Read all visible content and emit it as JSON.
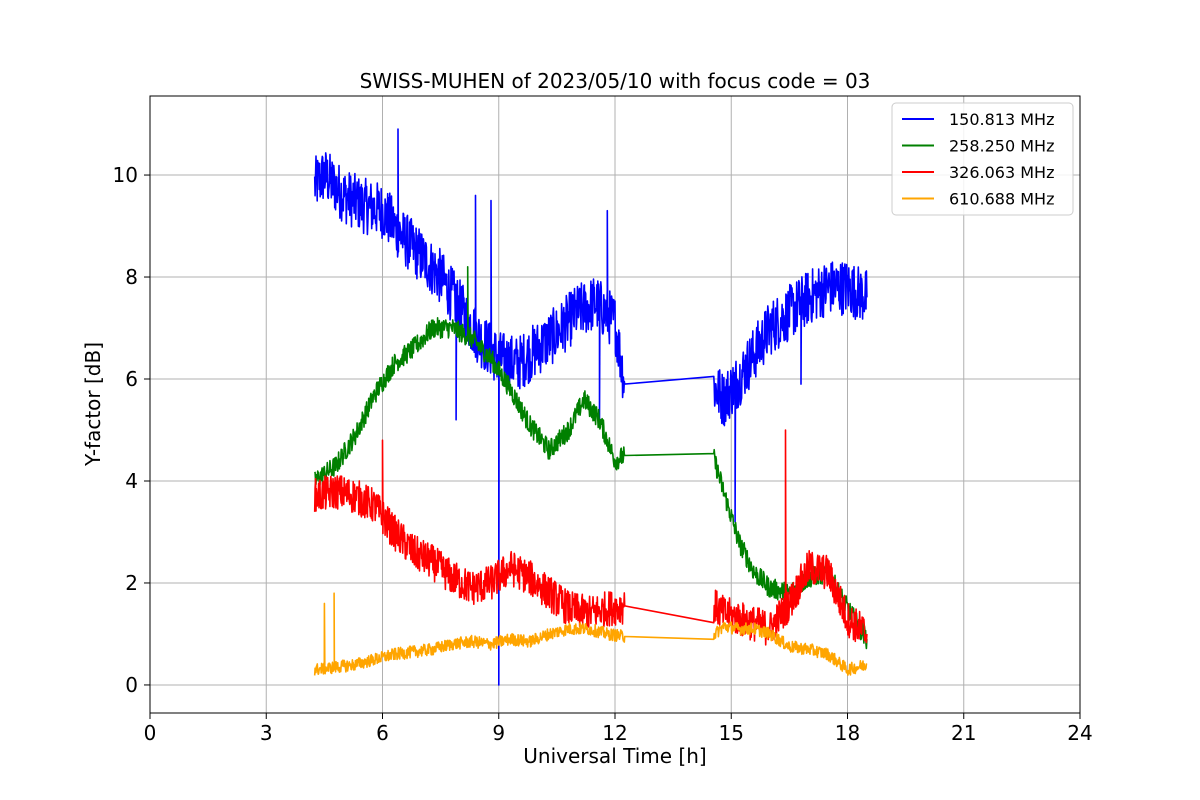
{
  "chart_data": {
    "type": "line",
    "title": "SWISS-MUHEN of 2023/05/10 with focus code = 03",
    "xlabel": "Universal Time [h]",
    "ylabel": "Y-factor [dB]",
    "xlim": [
      0,
      24
    ],
    "ylim": [
      -0.55,
      11.55
    ],
    "xticks": [
      0,
      3,
      6,
      9,
      12,
      15,
      18,
      21,
      24
    ],
    "yticks": [
      0,
      2,
      4,
      6,
      8,
      10
    ],
    "xtick_labels": [
      "0",
      "3",
      "6",
      "9",
      "12",
      "15",
      "18",
      "21",
      "24"
    ],
    "ytick_labels": [
      "0",
      "2",
      "4",
      "6",
      "8",
      "10"
    ],
    "grid": true,
    "legend_position": "top-right",
    "series": [
      {
        "name": "150.813 MHz",
        "color": "#0000ff",
        "noise": 0.55,
        "spikes": [
          [
            6.4,
            10.9
          ],
          [
            7.9,
            5.2
          ],
          [
            8.4,
            9.6
          ],
          [
            8.8,
            9.5
          ],
          [
            9.0,
            0.0
          ],
          [
            11.6,
            5.2
          ],
          [
            11.8,
            9.3
          ],
          [
            15.1,
            3.2
          ],
          [
            16.8,
            5.9
          ]
        ],
        "x": [
          4.25,
          4.5,
          5.0,
          5.5,
          6.0,
          6.5,
          7.0,
          7.5,
          8.0,
          8.5,
          9.0,
          9.5,
          10.0,
          10.5,
          11.0,
          11.5,
          12.0,
          12.25,
          14.55,
          14.8,
          15.2,
          15.6,
          16.0,
          16.5,
          17.0,
          17.5,
          18.0,
          18.5
        ],
        "y": [
          9.8,
          10.0,
          9.6,
          9.4,
          9.3,
          8.8,
          8.4,
          8.0,
          7.4,
          6.8,
          6.4,
          6.3,
          6.6,
          6.9,
          7.3,
          7.5,
          7.1,
          5.9,
          5.85,
          5.6,
          6.0,
          6.5,
          7.0,
          7.3,
          7.6,
          7.8,
          7.8,
          7.6
        ]
      },
      {
        "name": "258.250 MHz",
        "color": "#008000",
        "noise": 0.2,
        "spikes": [
          [
            8.2,
            8.2
          ]
        ],
        "x": [
          4.25,
          4.8,
          5.3,
          5.8,
          6.3,
          6.8,
          7.3,
          7.8,
          8.3,
          8.8,
          9.3,
          9.8,
          10.3,
          10.8,
          11.2,
          11.6,
          12.0,
          12.25,
          14.55,
          14.8,
          15.2,
          15.6,
          16.0,
          16.5,
          17.0,
          17.5,
          18.0,
          18.5
        ],
        "y": [
          4.0,
          4.3,
          4.9,
          5.7,
          6.3,
          6.6,
          7.0,
          7.0,
          6.8,
          6.4,
          5.8,
          5.1,
          4.6,
          5.0,
          5.6,
          5.2,
          4.4,
          4.5,
          4.45,
          3.8,
          2.8,
          2.2,
          1.9,
          1.8,
          2.1,
          2.2,
          1.5,
          0.9
        ]
      },
      {
        "name": "326.063 MHz",
        "color": "#ff0000",
        "noise": 0.35,
        "spikes": [
          [
            6.0,
            4.8
          ],
          [
            16.4,
            5.0
          ]
        ],
        "x": [
          4.25,
          4.8,
          5.3,
          5.8,
          6.3,
          6.8,
          7.3,
          7.8,
          8.3,
          8.8,
          9.3,
          9.8,
          10.3,
          10.8,
          11.3,
          11.8,
          12.25,
          14.55,
          14.8,
          15.2,
          15.6,
          16.0,
          16.5,
          17.0,
          17.5,
          18.0,
          18.5
        ],
        "y": [
          3.7,
          3.8,
          3.7,
          3.5,
          3.0,
          2.6,
          2.4,
          2.1,
          1.9,
          2.0,
          2.3,
          2.1,
          1.8,
          1.5,
          1.4,
          1.5,
          1.55,
          1.55,
          1.4,
          1.3,
          1.2,
          1.1,
          1.6,
          2.3,
          2.2,
          1.3,
          1.0
        ]
      },
      {
        "name": "610.688 MHz",
        "color": "#ffa500",
        "noise": 0.12,
        "spikes": [
          [
            4.5,
            1.6
          ],
          [
            4.75,
            1.8
          ]
        ],
        "x": [
          4.25,
          4.8,
          5.3,
          5.8,
          6.3,
          6.8,
          7.3,
          7.8,
          8.3,
          8.8,
          9.3,
          9.8,
          10.3,
          10.8,
          11.3,
          11.8,
          12.25,
          14.55,
          14.8,
          15.2,
          15.6,
          16.0,
          16.5,
          17.0,
          17.5,
          18.0,
          18.5
        ],
        "y": [
          0.3,
          0.35,
          0.4,
          0.5,
          0.6,
          0.65,
          0.7,
          0.8,
          0.85,
          0.8,
          0.9,
          0.85,
          1.0,
          1.1,
          1.1,
          1.0,
          0.95,
          0.98,
          1.15,
          1.1,
          1.1,
          1.0,
          0.75,
          0.7,
          0.6,
          0.3,
          0.4
        ]
      }
    ]
  }
}
